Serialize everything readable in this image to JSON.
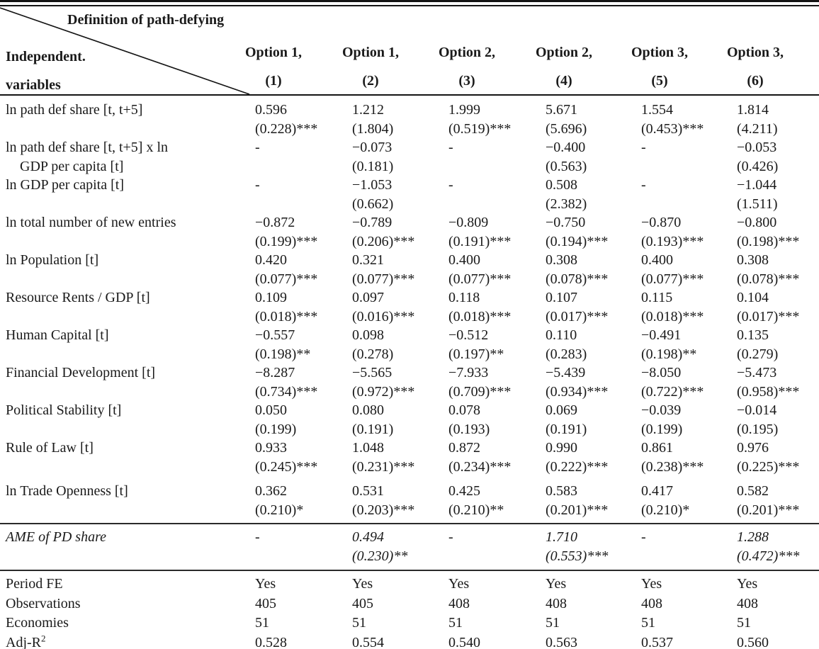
{
  "header": {
    "super_label": "Definition of path-defying",
    "row_label_line1": "Independent.",
    "row_label_line2": "variables",
    "columns": [
      {
        "group": "Option 1,",
        "num": "(1)"
      },
      {
        "group": "Option 1,",
        "num": "(2)"
      },
      {
        "group": "Option 2,",
        "num": "(3)"
      },
      {
        "group": "Option 2,",
        "num": "(4)"
      },
      {
        "group": "Option 3,",
        "num": "(5)"
      },
      {
        "group": "Option 3,",
        "num": "(6)"
      }
    ]
  },
  "table": {
    "rows": [
      {
        "label": [
          "ln path def share [t, t+5]"
        ],
        "cells": [
          [
            "0.596",
            "(0.228)***"
          ],
          [
            "1.212",
            "(1.804)"
          ],
          [
            "1.999",
            "(0.519)***"
          ],
          [
            "5.671",
            "(5.696)"
          ],
          [
            "1.554",
            "(0.453)***"
          ],
          [
            "1.814",
            "(4.211)"
          ]
        ]
      },
      {
        "label": [
          "ln path def share [t, t+5] x ln",
          "GDP per capita [t]"
        ],
        "cells": [
          [
            "-",
            ""
          ],
          [
            "−0.073",
            "(0.181)"
          ],
          [
            "-",
            ""
          ],
          [
            "−0.400",
            "(0.563)"
          ],
          [
            "-",
            ""
          ],
          [
            "−0.053",
            "(0.426)"
          ]
        ]
      },
      {
        "label": [
          "ln GDP per capita [t]"
        ],
        "cells": [
          [
            "-",
            ""
          ],
          [
            "−1.053",
            "(0.662)"
          ],
          [
            "-",
            ""
          ],
          [
            "0.508",
            "(2.382)"
          ],
          [
            "-",
            ""
          ],
          [
            "−1.044",
            "(1.511)"
          ]
        ]
      },
      {
        "label": [
          "ln total number of new entries"
        ],
        "cells": [
          [
            "−0.872",
            "(0.199)***"
          ],
          [
            "−0.789",
            "(0.206)***"
          ],
          [
            "−0.809",
            "(0.191)***"
          ],
          [
            "−0.750",
            "(0.194)***"
          ],
          [
            "−0.870",
            "(0.193)***"
          ],
          [
            "−0.800",
            "(0.198)***"
          ]
        ]
      },
      {
        "label": [
          "ln Population [t]"
        ],
        "cells": [
          [
            "0.420",
            "(0.077)***"
          ],
          [
            "0.321",
            "(0.077)***"
          ],
          [
            "0.400",
            "(0.077)***"
          ],
          [
            "0.308",
            "(0.078)***"
          ],
          [
            "0.400",
            "(0.077)***"
          ],
          [
            "0.308",
            "(0.078)***"
          ]
        ]
      },
      {
        "label": [
          "Resource Rents / GDP [t]"
        ],
        "cells": [
          [
            "0.109",
            "(0.018)***"
          ],
          [
            "0.097",
            "(0.016)***"
          ],
          [
            "0.118",
            "(0.018)***"
          ],
          [
            "0.107",
            "(0.017)***"
          ],
          [
            "0.115",
            "(0.018)***"
          ],
          [
            "0.104",
            "(0.017)***"
          ]
        ]
      },
      {
        "label": [
          "Human Capital [t]"
        ],
        "cells": [
          [
            "−0.557",
            "(0.198)**"
          ],
          [
            "0.098",
            "(0.278)"
          ],
          [
            "−0.512",
            "(0.197)**"
          ],
          [
            "0.110",
            "(0.283)"
          ],
          [
            "−0.491",
            "(0.198)**"
          ],
          [
            "0.135",
            "(0.279)"
          ]
        ]
      },
      {
        "label": [
          "Financial Development [t]"
        ],
        "cells": [
          [
            "−8.287",
            "(0.734)***"
          ],
          [
            "−5.565",
            "(0.972)***"
          ],
          [
            "−7.933",
            "(0.709)***"
          ],
          [
            "−5.439",
            "(0.934)***"
          ],
          [
            "−8.050",
            "(0.722)***"
          ],
          [
            "−5.473",
            "(0.958)***"
          ]
        ]
      },
      {
        "label": [
          "Political Stability [t]"
        ],
        "cells": [
          [
            "0.050",
            "(0.199)"
          ],
          [
            "0.080",
            "(0.191)"
          ],
          [
            "0.078",
            "(0.193)"
          ],
          [
            "0.069",
            "(0.191)"
          ],
          [
            "−0.039",
            "(0.199)"
          ],
          [
            "−0.014",
            "(0.195)"
          ]
        ]
      },
      {
        "label": [
          "Rule of Law [t]"
        ],
        "cells": [
          [
            "0.933",
            "(0.245)***"
          ],
          [
            "1.048",
            "(0.231)***"
          ],
          [
            "0.872",
            "(0.234)***"
          ],
          [
            "0.990",
            "(0.222)***"
          ],
          [
            "0.861",
            "(0.238)***"
          ],
          [
            "0.976",
            "(0.225)***"
          ]
        ]
      },
      {
        "label": [
          "ln Trade Openness [t]"
        ],
        "gap_before": true,
        "cells": [
          [
            "0.362",
            "(0.210)*"
          ],
          [
            "0.531",
            "(0.203)***"
          ],
          [
            "0.425",
            "(0.210)**"
          ],
          [
            "0.583",
            "(0.201)***"
          ],
          [
            "0.417",
            "(0.210)*"
          ],
          [
            "0.582",
            "(0.201)***"
          ]
        ]
      }
    ],
    "ame_row": {
      "label": "AME of PD share",
      "cells": [
        [
          "-",
          ""
        ],
        [
          "0.494",
          "(0.230)**"
        ],
        [
          "-",
          ""
        ],
        [
          "1.710",
          "(0.553)***"
        ],
        [
          "-",
          ""
        ],
        [
          "1.288",
          "(0.472)***"
        ]
      ]
    },
    "footer_rows": [
      {
        "label": "Period FE",
        "values": [
          "Yes",
          "Yes",
          "Yes",
          "Yes",
          "Yes",
          "Yes"
        ]
      },
      {
        "label": "Observations",
        "values": [
          "405",
          "405",
          "408",
          "408",
          "408",
          "408"
        ]
      },
      {
        "label": "Economies",
        "values": [
          "51",
          "51",
          "51",
          "51",
          "51",
          "51"
        ]
      },
      {
        "label": "Adj-R",
        "label_sup": "2",
        "values": [
          "0.528",
          "0.554",
          "0.540",
          "0.563",
          "0.537",
          "0.560"
        ]
      }
    ]
  }
}
